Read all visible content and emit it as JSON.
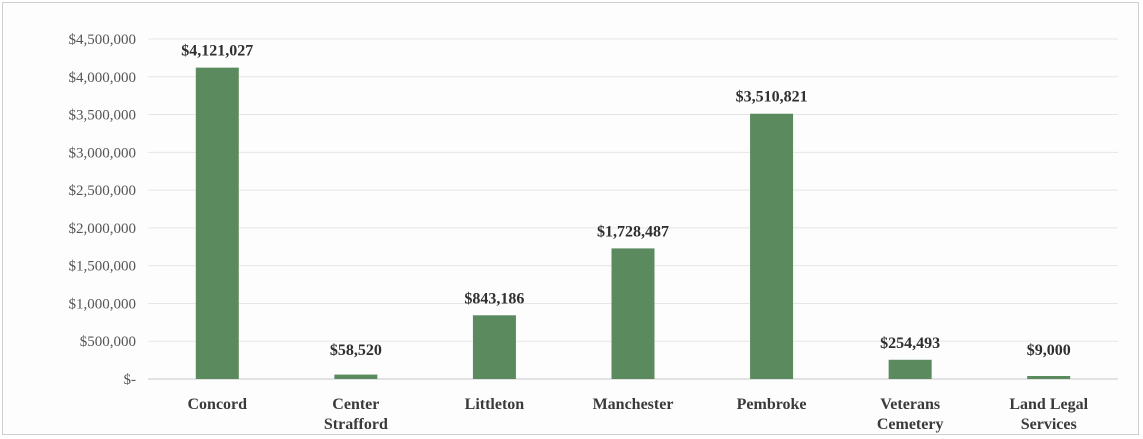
{
  "chart_data": {
    "type": "bar",
    "categories": [
      [
        "Concord"
      ],
      [
        "Center",
        "Strafford"
      ],
      [
        "Littleton"
      ],
      [
        "Manchester"
      ],
      [
        "Pembroke"
      ],
      [
        "Veterans",
        "Cemetery"
      ],
      [
        "Land Legal",
        "Services"
      ]
    ],
    "values": [
      4121027,
      58520,
      843186,
      1728487,
      3510821,
      254493,
      9000
    ],
    "data_labels": [
      "$4,121,027",
      "$58,520",
      "$843,186",
      "$1,728,487",
      "$3,510,821",
      "$254,493",
      "$9,000"
    ],
    "y_tick_labels": [
      "$-",
      "$500,000",
      "$1,000,000",
      "$1,500,000",
      "$2,000,000",
      "$2,500,000",
      "$3,000,000",
      "$3,500,000",
      "$4,000,000",
      "$4,500,000"
    ],
    "ylim": [
      0,
      4500000
    ],
    "y_tick_step": 500000,
    "grid": true,
    "bar_color": "#5b8a5f",
    "title": "",
    "xlabel": "",
    "ylabel": ""
  }
}
